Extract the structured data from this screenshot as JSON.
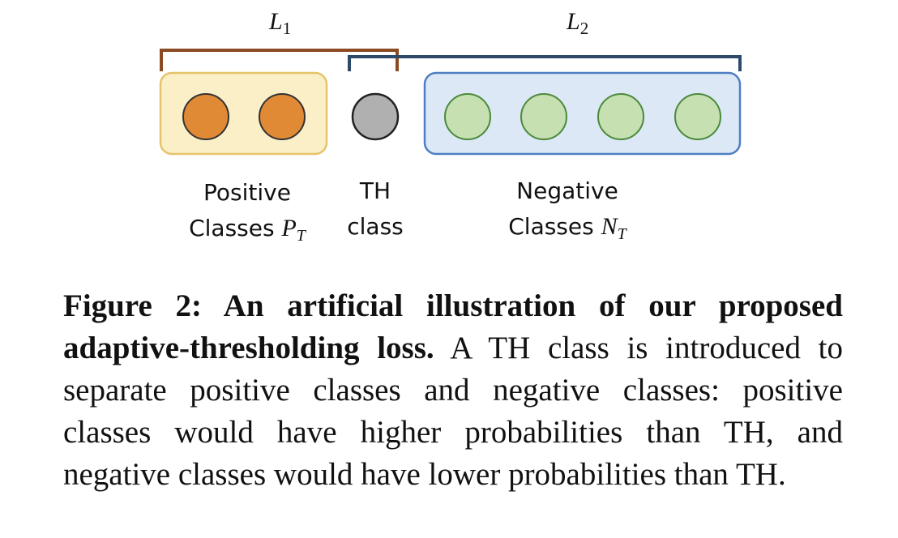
{
  "diagram": {
    "brackets": {
      "l1": {
        "letter": "L",
        "sub": "1"
      },
      "l2": {
        "letter": "L",
        "sub": "2"
      }
    },
    "groups": {
      "positive": {
        "line1": "Positive",
        "line2": "Classes",
        "sym": "P",
        "sym_sub": "T"
      },
      "th": {
        "line1": "TH",
        "line2": "class"
      },
      "negative": {
        "line1": "Negative",
        "line2": "Classes",
        "sym": "N",
        "sym_sub": "T"
      }
    },
    "colors": {
      "positive_fill": "#fbefc8",
      "positive_border": "#e6c36a",
      "positive_node": "#e08a35",
      "th_node": "#b0b0b0",
      "negative_fill": "#dce8f6",
      "negative_border": "#4f7ec2",
      "negative_node": "#c7e0b2",
      "bracket_l1": "#8b4a22",
      "bracket_l2": "#2e4a6b"
    }
  },
  "caption": {
    "bold": "Figure 2: An artificial illustration of our proposed adaptive-thresholding loss.",
    "text": " A TH class is introduced to separate positive classes and negative classes: positive classes would have higher probabilities than TH, and negative classes would have lower probabilities than TH."
  }
}
